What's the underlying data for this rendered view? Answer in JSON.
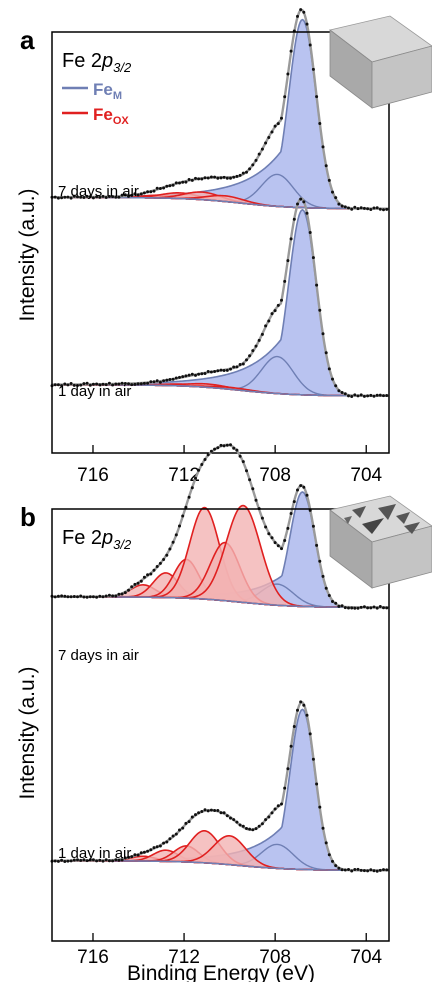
{
  "figure": {
    "xlabel": "Binding Energy (eV)",
    "ylabel": "Intensity (a.u.)"
  },
  "colors": {
    "metal_fill": "#b9c3f0",
    "metal_line": "#6f7fb4",
    "oxide_fill": "#f2b3b3",
    "oxide_line": "#e02020",
    "envelope": "#9a9a9a",
    "data_points": "#111111",
    "baseline": "#6f7fb4"
  },
  "chart_data": [
    {
      "panel": "a",
      "type": "line",
      "title": "Fe 2p3/2",
      "title_main": "Fe 2",
      "title_italic": "p",
      "title_sub": "3/2",
      "xlim": [
        717.8,
        703.0
      ],
      "x_ticks": [
        716,
        712,
        708,
        704
      ],
      "x_tick_labels": [
        "716",
        "712",
        "708",
        "704"
      ],
      "ylabel": "Intensity (a.u.)",
      "legend": [
        {
          "main": "Fe",
          "sub": "M",
          "color": "#6f7fb4"
        },
        {
          "main": "Fe",
          "sub": "OX",
          "color": "#e02020"
        }
      ],
      "spectra": [
        {
          "label": "7 days in air",
          "metal_peaks": [
            {
              "center": 706.8,
              "amplitude": 1.0,
              "width": 0.6,
              "tail": 0.9
            },
            {
              "center": 707.9,
              "amplitude": 0.17,
              "width": 0.7,
              "tail": 0.3
            }
          ],
          "oxide_peaks": [
            {
              "center": 713.0,
              "amplitude": 0.015,
              "width": 0.8
            },
            {
              "center": 712.2,
              "amplitude": 0.03,
              "width": 0.8
            },
            {
              "center": 711.2,
              "amplitude": 0.04,
              "width": 0.8
            },
            {
              "center": 710.2,
              "amplitude": 0.03,
              "width": 0.8
            }
          ]
        },
        {
          "label": "1 day in air",
          "metal_peaks": [
            {
              "center": 706.8,
              "amplitude": 1.0,
              "width": 0.6,
              "tail": 0.9
            },
            {
              "center": 707.9,
              "amplitude": 0.2,
              "width": 0.7,
              "tail": 0.3
            }
          ],
          "oxide_peaks": [
            {
              "center": 712.0,
              "amplitude": 0.01,
              "width": 0.9
            },
            {
              "center": 711.0,
              "amplitude": 0.018,
              "width": 0.9
            },
            {
              "center": 710.0,
              "amplitude": 0.01,
              "width": 0.9
            }
          ]
        }
      ]
    },
    {
      "panel": "b",
      "type": "line",
      "title": "Fe 2p3/2",
      "title_main": "Fe 2",
      "title_italic": "p",
      "title_sub": "3/2",
      "xlim": [
        717.8,
        703.0
      ],
      "x_ticks": [
        716,
        712,
        708,
        704
      ],
      "x_tick_labels": [
        "716",
        "712",
        "708",
        "704"
      ],
      "ylabel": "Intensity (a.u.)",
      "xlabel": "Binding Energy (eV)",
      "spectra": [
        {
          "label": "7 days in air",
          "metal_peaks": [
            {
              "center": 706.8,
              "amplitude": 0.65,
              "width": 0.55,
              "tail": 0.8
            },
            {
              "center": 707.9,
              "amplitude": 0.12,
              "width": 0.7,
              "tail": 0.3
            }
          ],
          "oxide_peaks": [
            {
              "center": 713.8,
              "amplitude": 0.07,
              "width": 0.55
            },
            {
              "center": 712.8,
              "amplitude": 0.14,
              "width": 0.55
            },
            {
              "center": 711.9,
              "amplitude": 0.22,
              "width": 0.55
            },
            {
              "center": 711.1,
              "amplitude": 0.52,
              "width": 0.65
            },
            {
              "center": 710.2,
              "amplitude": 0.33,
              "width": 0.65
            },
            {
              "center": 709.4,
              "amplitude": 0.55,
              "width": 0.75
            }
          ]
        },
        {
          "label": "1 day in air",
          "metal_peaks": [
            {
              "center": 706.8,
              "amplitude": 1.0,
              "width": 0.55,
              "tail": 0.8
            },
            {
              "center": 707.9,
              "amplitude": 0.15,
              "width": 0.7,
              "tail": 0.3
            }
          ],
          "oxide_peaks": [
            {
              "center": 713.8,
              "amplitude": 0.03,
              "width": 0.55
            },
            {
              "center": 712.8,
              "amplitude": 0.07,
              "width": 0.55
            },
            {
              "center": 711.9,
              "amplitude": 0.1,
              "width": 0.55
            },
            {
              "center": 711.1,
              "amplitude": 0.2,
              "width": 0.65
            },
            {
              "center": 710.0,
              "amplitude": 0.18,
              "width": 0.7
            }
          ]
        }
      ]
    }
  ]
}
